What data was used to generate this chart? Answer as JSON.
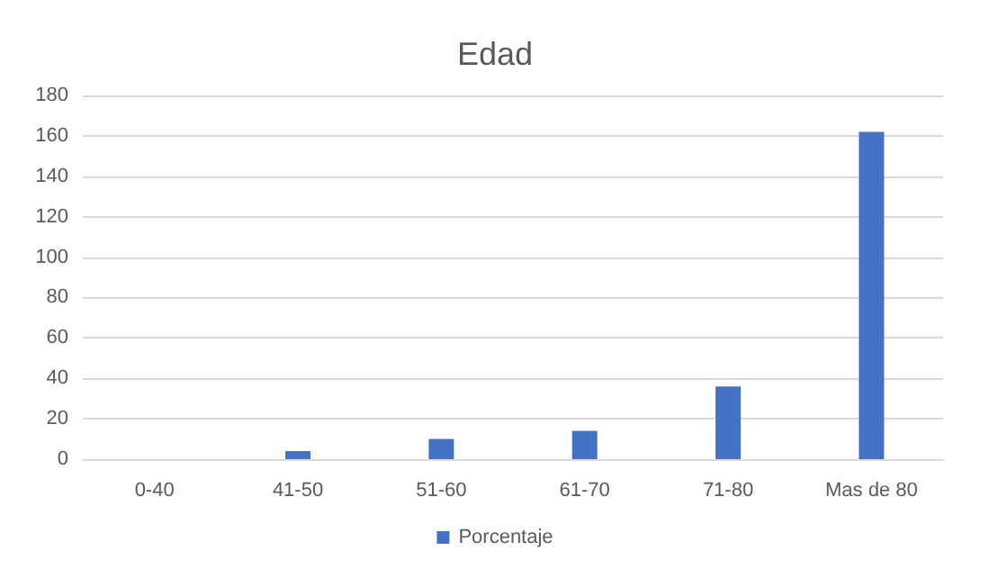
{
  "chart_data": {
    "type": "bar",
    "title": "Edad",
    "categories": [
      "0-40",
      "41-50",
      "51-60",
      "61-70",
      "71-80",
      "Mas de 80"
    ],
    "series": [
      {
        "name": "Porcentaje",
        "color": "#4472c4",
        "values": [
          0,
          4,
          10,
          14,
          36,
          162
        ]
      }
    ],
    "ylim": [
      0,
      180
    ],
    "yticks": [
      0,
      20,
      40,
      60,
      80,
      100,
      120,
      140,
      160,
      180
    ],
    "grid": "y",
    "legend": "bottom"
  }
}
